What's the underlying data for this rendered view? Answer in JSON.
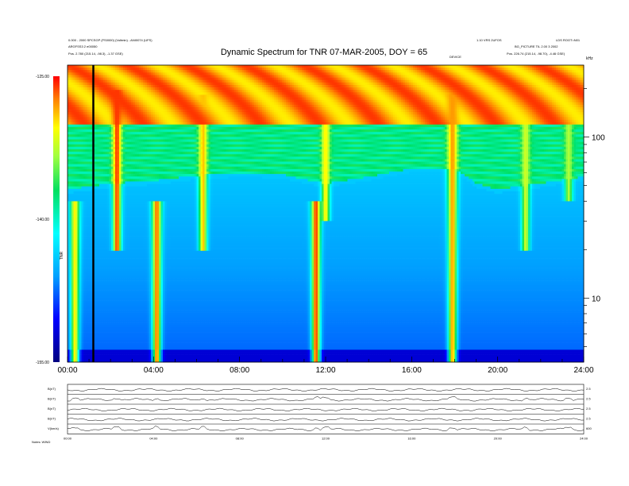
{
  "chart_data": {
    "type": "heatmap",
    "title": "Dynamic Spectrum for TNR 07-MAR-2005, DOY = 65",
    "header": {
      "left_line1": "0.000 - 2000 SPCSGP (FS0000) (Voltmin) - ANI0074 (UFS)",
      "left_line2": "ARGFSS3 2 e00050",
      "left_line3": "Pos. 2.780 (215.14, -98.3), -1.37 GSE)",
      "right_line1": "1.10 VRS 2UFOS",
      "right_line2": "LDS ROOT=N01",
      "right_line3": "BG_PICTURE TIL 2.00 3 2002",
      "right_line4": "Pos. 226.74 (215.14, -98.70), -4.46 GSE)",
      "marker_label": "DEVICE"
    },
    "x_axis": {
      "tick_labels": [
        "00:00",
        "04:00",
        "08:00",
        "12:00",
        "16:00",
        "20:00",
        "24:00"
      ],
      "range_hours": [
        0,
        24
      ]
    },
    "y_axis": {
      "scale": "log",
      "unit_label": "kHz",
      "tick_labels": [
        "100",
        "10"
      ],
      "tick_values": [
        100,
        10
      ],
      "range_khz": [
        4,
        280
      ]
    },
    "colorbar": {
      "label": "TNR",
      "tick_labels": [
        "-125.00",
        "-140.00",
        "-155.00"
      ],
      "tick_values": [
        -125,
        -140,
        -155
      ],
      "range": [
        -155,
        -125
      ]
    },
    "marker_time_hours": 1.2,
    "background": {
      "description_levels": [
        {
          "freq_khz_from": 4,
          "freq_khz_to": 4.7,
          "level": -152
        },
        {
          "freq_khz_from": 4.7,
          "freq_khz_to": 38,
          "level": -146
        },
        {
          "freq_khz_from": 38,
          "freq_khz_to": 120,
          "level": -138
        },
        {
          "freq_khz_from": 120,
          "freq_khz_to": 280,
          "level": -128
        }
      ]
    },
    "boundary_freq_khz": [
      {
        "t": 0,
        "f": 46
      },
      {
        "t": 2,
        "f": 50
      },
      {
        "t": 4,
        "f": 52
      },
      {
        "t": 6,
        "f": 56
      },
      {
        "t": 8,
        "f": 58
      },
      {
        "t": 10,
        "f": 57
      },
      {
        "t": 11,
        "f": 53
      },
      {
        "t": 12,
        "f": 50
      },
      {
        "t": 14,
        "f": 55
      },
      {
        "t": 16,
        "f": 62
      },
      {
        "t": 18,
        "f": 62
      },
      {
        "t": 19,
        "f": 50
      },
      {
        "t": 20,
        "f": 46
      },
      {
        "t": 22,
        "f": 50
      },
      {
        "t": 24,
        "f": 55
      }
    ],
    "bursts": [
      {
        "t_hours": 0.35,
        "f_low_khz": 4,
        "f_high_khz": 40,
        "peak": -130
      },
      {
        "t_hours": 2.3,
        "f_low_khz": 20,
        "f_high_khz": 200,
        "peak": -126
      },
      {
        "t_hours": 4.15,
        "f_low_khz": 4,
        "f_high_khz": 40,
        "peak": -127
      },
      {
        "t_hours": 6.3,
        "f_low_khz": 20,
        "f_high_khz": 180,
        "peak": -129
      },
      {
        "t_hours": 11.55,
        "f_low_khz": 4,
        "f_high_khz": 40,
        "peak": -126
      },
      {
        "t_hours": 12.0,
        "f_low_khz": 30,
        "f_high_khz": 120,
        "peak": -130
      },
      {
        "t_hours": 17.9,
        "f_low_khz": 4,
        "f_high_khz": 180,
        "peak": -128
      },
      {
        "t_hours": 21.3,
        "f_low_khz": 20,
        "f_high_khz": 150,
        "peak": -132
      },
      {
        "t_hours": 23.3,
        "f_low_khz": 40,
        "f_high_khz": 280,
        "peak": -133
      }
    ],
    "sub_panels": {
      "labels": [
        "B(nT)",
        "B(nT)",
        "B(nT)",
        "B(nT)",
        "V(km/s)"
      ],
      "right_labels": [
        "2.5",
        "2.5",
        "2.5",
        "2.5",
        "600"
      ],
      "x_tick_labels": [
        "00:00",
        "04:00",
        "08:00",
        "12:00",
        "16:00",
        "20:00",
        "24:00"
      ],
      "footer_left": "Notes: WIND"
    }
  }
}
